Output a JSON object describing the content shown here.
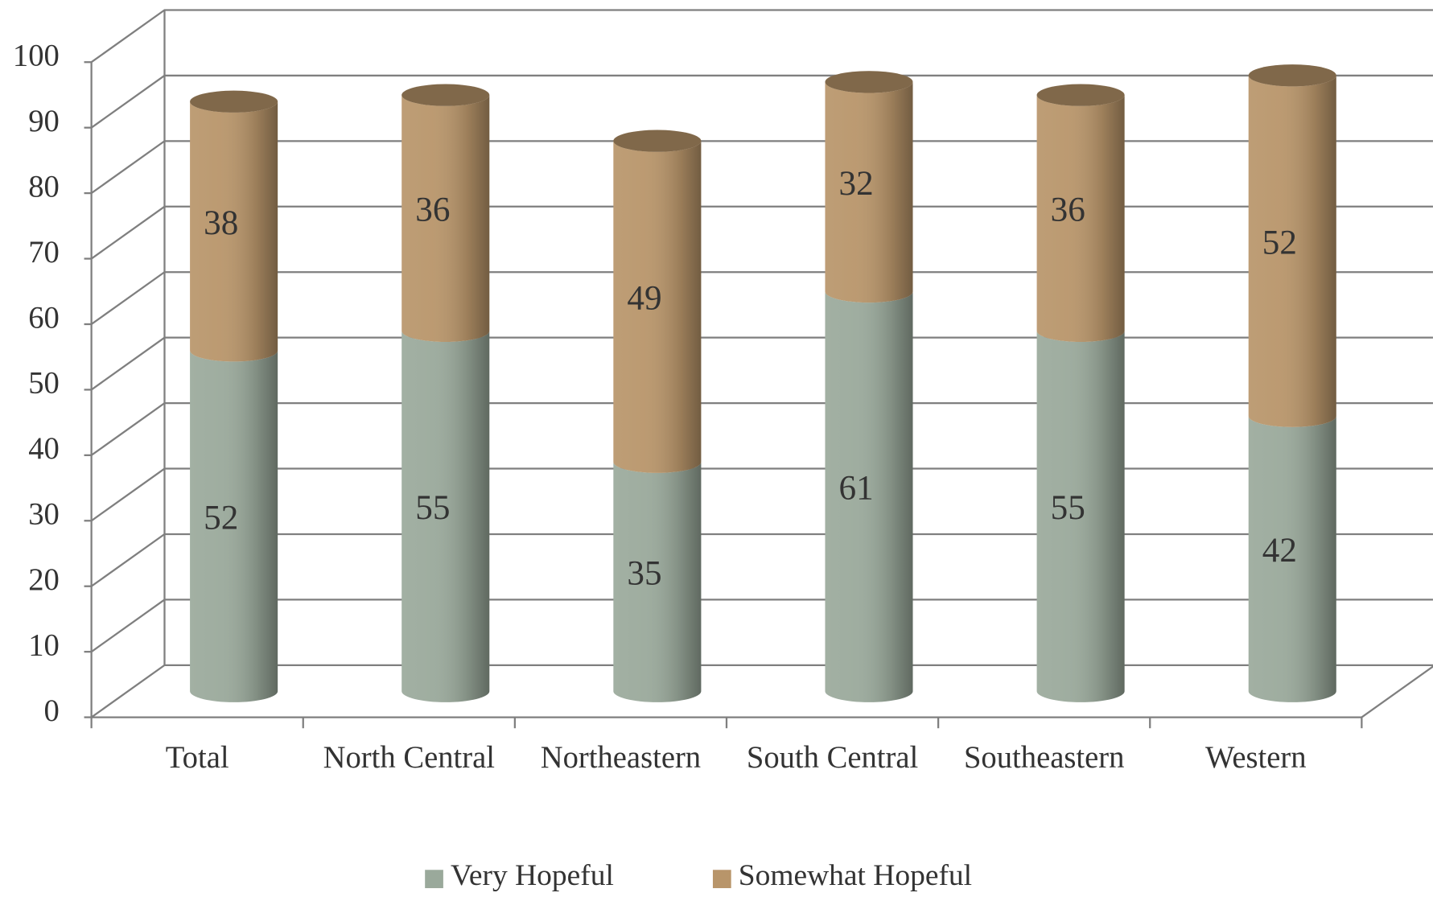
{
  "chart_data": {
    "type": "bar3d_stacked",
    "categories": [
      "Total",
      "North Central",
      "Northeastern",
      "South Central",
      "Southeastern",
      "Western"
    ],
    "series": [
      {
        "name": "Very Hopeful",
        "color": "#9aa99b",
        "values": [
          52,
          55,
          35,
          61,
          55,
          42
        ]
      },
      {
        "name": "Somewhat Hopeful",
        "color": "#b8956a",
        "values": [
          38,
          36,
          49,
          32,
          36,
          52
        ]
      }
    ],
    "ylim": [
      0,
      100
    ],
    "yticks": [
      0,
      10,
      20,
      30,
      40,
      50,
      60,
      70,
      80,
      90,
      100
    ],
    "grid": true
  }
}
